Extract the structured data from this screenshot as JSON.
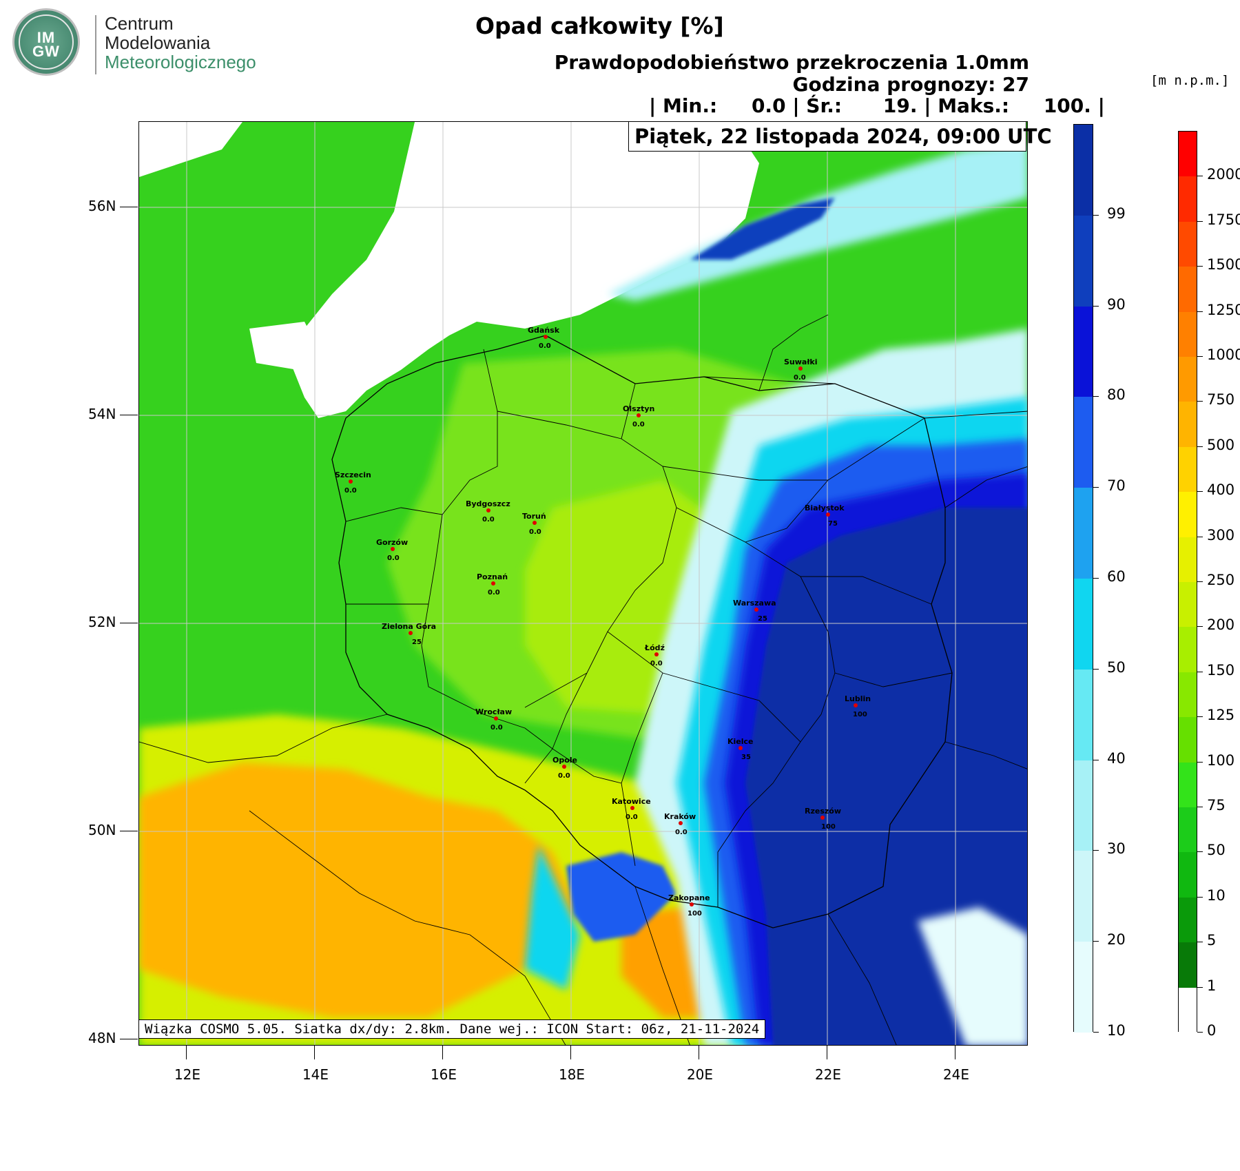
{
  "logo": {
    "mark_top": "IM",
    "mark_bottom": "GW",
    "line1": "Centrum",
    "line2": "Modelowania",
    "line3": "Meteorologicznego"
  },
  "title": "Opad całkowity [%]",
  "subtitle1": "Prawdopodobieństwo przekroczenia 1.0mm",
  "subtitle2": "Godzina prognozy: 27",
  "stats": {
    "min_label": "| Min.:",
    "min_value": "0.0",
    "mean_label": "| Śr.:",
    "mean_value": "19.",
    "max_label": "| Maks.:",
    "max_value": "100.",
    "end": "|"
  },
  "date": "Piątek, 22 listopada 2024, 09:00 UTC",
  "info": "Wiązka COSMO 5.05. Siatka dx/dy: 2.8km. Dane wej.: ICON Start: 06z, 21-11-2024",
  "unit_label": "[m n.p.m.]",
  "lat_labels": [
    "56N",
    "54N",
    "52N",
    "50N",
    "48N"
  ],
  "lon_labels": [
    "12E",
    "14E",
    "16E",
    "18E",
    "20E",
    "22E",
    "24E"
  ],
  "prob_scale": {
    "labels": [
      "99",
      "90",
      "80",
      "70",
      "60",
      "50",
      "40",
      "30",
      "20",
      "10"
    ],
    "colors": [
      "#0b2fa6",
      "#0f3fbd",
      "#0a12d8",
      "#1d5cf0",
      "#1ea2f0",
      "#10d6f0",
      "#66e9f3",
      "#a7f1f6",
      "#cdf6f9",
      "#e6fcfd"
    ]
  },
  "elev_scale": {
    "labels": [
      "2000",
      "1750",
      "1500",
      "1250",
      "1000",
      "750",
      "500",
      "400",
      "300",
      "250",
      "200",
      "150",
      "125",
      "100",
      "75",
      "50",
      "10",
      "5",
      "1",
      "0"
    ],
    "colors": [
      "#ff0000",
      "#ff2a00",
      "#ff4a00",
      "#ff6a00",
      "#ff8000",
      "#ff9a00",
      "#ffb400",
      "#ffd200",
      "#fff000",
      "#e6f000",
      "#c8f000",
      "#a8ee00",
      "#88e800",
      "#66e000",
      "#33e31a",
      "#1ccc1a",
      "#10b810",
      "#0a9a0a",
      "#087a08",
      "#ffffff"
    ]
  },
  "cities": [
    {
      "name": "Gdańsk",
      "value": "0.0"
    },
    {
      "name": "Suwałki",
      "value": "0.0"
    },
    {
      "name": "Olsztyn",
      "value": "0.0"
    },
    {
      "name": "Szczecin",
      "value": "0.0"
    },
    {
      "name": "Bydgoszcz",
      "value": "0.0"
    },
    {
      "name": "Toruń",
      "value": "0.0"
    },
    {
      "name": "Białystok",
      "value": "75"
    },
    {
      "name": "Gorzów",
      "value": "0.0"
    },
    {
      "name": "Poznań",
      "value": "0.0"
    },
    {
      "name": "Warszawa",
      "value": "25"
    },
    {
      "name": "Zielona Góra",
      "value": "25"
    },
    {
      "name": "Łódź",
      "value": "0.0"
    },
    {
      "name": "Wrocław",
      "value": "0.0"
    },
    {
      "name": "Lublin",
      "value": "100"
    },
    {
      "name": "Kielce",
      "value": "35"
    },
    {
      "name": "Opole",
      "value": "0.0"
    },
    {
      "name": "Katowice",
      "value": "0.0"
    },
    {
      "name": "Kraków",
      "value": "0.0"
    },
    {
      "name": "Rzeszów",
      "value": "100"
    },
    {
      "name": "Zakopane",
      "value": "100"
    }
  ]
}
